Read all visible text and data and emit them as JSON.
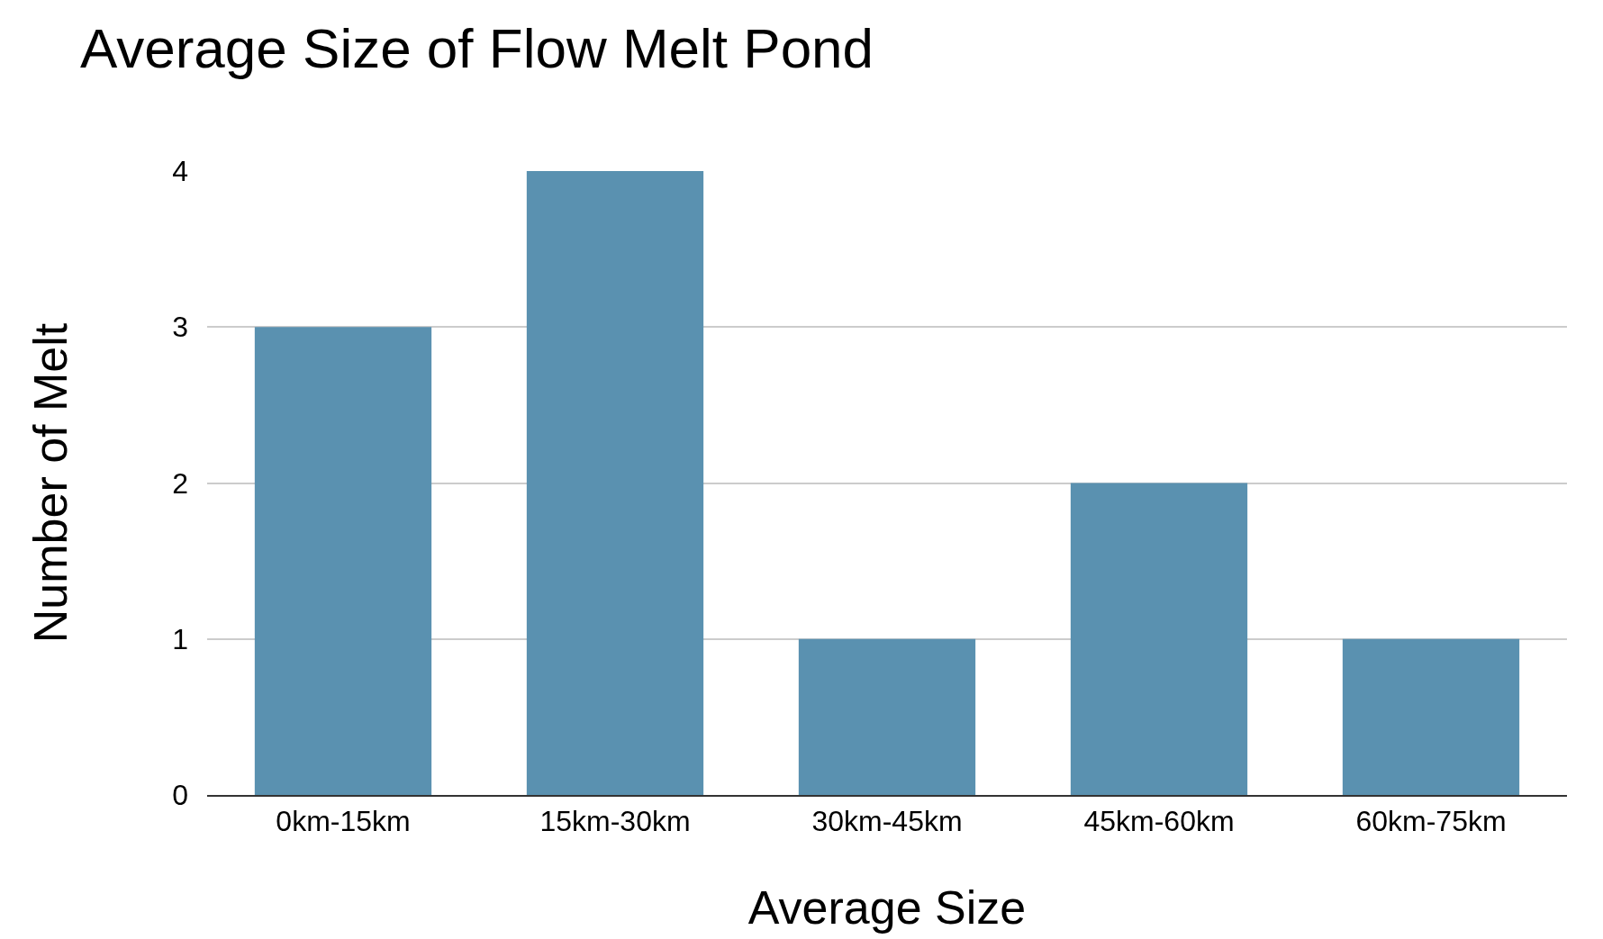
{
  "chart_data": {
    "type": "bar",
    "title": "Average Size of Flow Melt Pond",
    "xlabel": "Average Size",
    "ylabel": "Number of Melt",
    "categories": [
      "0km-15km",
      "15km-30km",
      "30km-45km",
      "45km-60km",
      "60km-75km"
    ],
    "values": [
      3,
      4,
      1,
      2,
      1
    ],
    "color": "#5a91b0",
    "ylim": [
      0,
      4
    ],
    "yticks": [
      0,
      1,
      2,
      3,
      4
    ],
    "grid": "y"
  }
}
